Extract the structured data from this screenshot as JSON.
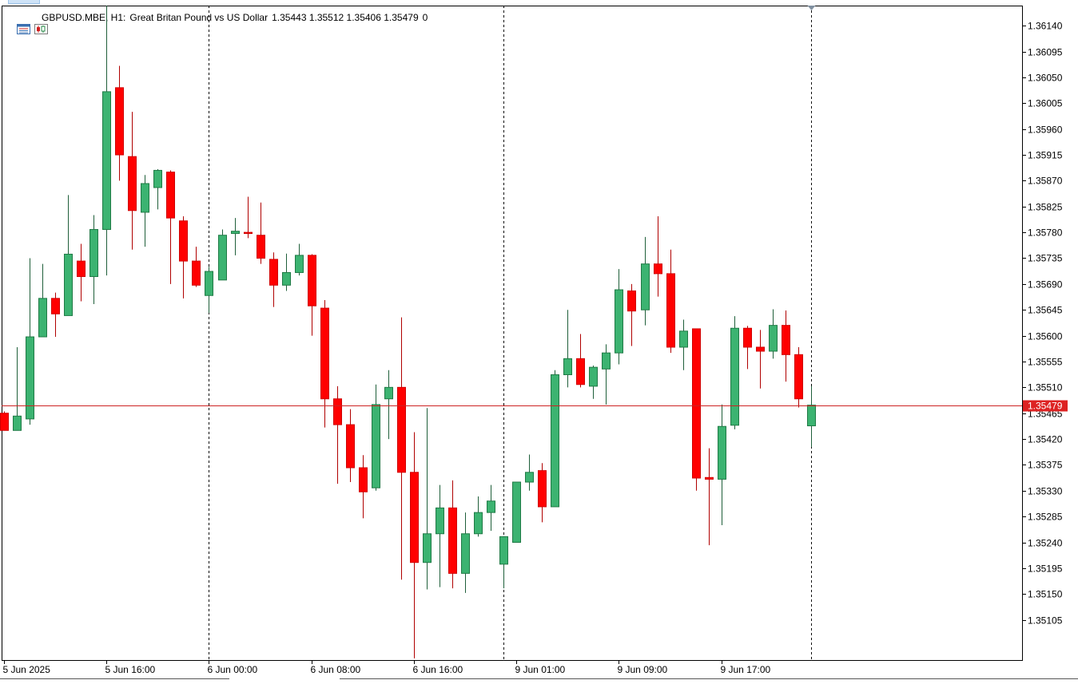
{
  "header": {
    "symbol_tf": "GBPUSD.MBE, H1:",
    "description": "Great Britan Pound vs US Dollar",
    "ohlc": "1.35443 1.35512 1.35406 1.35479",
    "volume": "0"
  },
  "colors": {
    "bull": "#3cb371",
    "bear": "#ff0000",
    "bull_border": "#1f7a45",
    "bear_border": "#d00000",
    "price_line": "#cc2222",
    "price_label_bg": "#dd2222",
    "grid": "#000000"
  },
  "icons": [
    "chart-window-icon",
    "candles-icon"
  ],
  "chart_data": {
    "type": "candlestick",
    "symbol": "GBPUSD.MBE",
    "timeframe": "H1",
    "ylim": [
      1.35035,
      1.36175
    ],
    "y_ticks": [
      "1.36140",
      "1.36095",
      "1.36050",
      "1.36005",
      "1.35960",
      "1.35915",
      "1.35870",
      "1.35825",
      "1.35780",
      "1.35735",
      "1.35690",
      "1.35645",
      "1.35600",
      "1.35555",
      "1.35510",
      "1.35465",
      "1.35420",
      "1.35375",
      "1.35330",
      "1.35285",
      "1.35240",
      "1.35195",
      "1.35150",
      "1.35105"
    ],
    "x_labels": [
      {
        "index": 0,
        "label": "5 Jun 2025"
      },
      {
        "index": 8,
        "label": "5 Jun 16:00"
      },
      {
        "index": 16,
        "label": "6 Jun 00:00"
      },
      {
        "index": 24,
        "label": "6 Jun 08:00"
      },
      {
        "index": 32,
        "label": "6 Jun 16:00"
      },
      {
        "index": 40,
        "label": "9 Jun 01:00"
      },
      {
        "index": 48,
        "label": "9 Jun 09:00"
      },
      {
        "index": 56,
        "label": "9 Jun 17:00"
      }
    ],
    "period_separators": [
      16,
      39,
      63
    ],
    "current_price": "1.35479",
    "candles": [
      {
        "o": 1.35465,
        "h": 1.35468,
        "l": 1.35435,
        "c": 1.35435
      },
      {
        "o": 1.35435,
        "h": 1.3558,
        "l": 1.35435,
        "c": 1.3546
      },
      {
        "o": 1.35455,
        "h": 1.35735,
        "l": 1.35445,
        "c": 1.35598
      },
      {
        "o": 1.35598,
        "h": 1.35725,
        "l": 1.35598,
        "c": 1.35665
      },
      {
        "o": 1.35665,
        "h": 1.35675,
        "l": 1.35598,
        "c": 1.35638
      },
      {
        "o": 1.35635,
        "h": 1.35845,
        "l": 1.35635,
        "c": 1.35742
      },
      {
        "o": 1.3573,
        "h": 1.3576,
        "l": 1.3566,
        "c": 1.35703
      },
      {
        "o": 1.35703,
        "h": 1.3581,
        "l": 1.35655,
        "c": 1.35785
      },
      {
        "o": 1.35785,
        "h": 1.36175,
        "l": 1.35705,
        "c": 1.36025
      },
      {
        "o": 1.36032,
        "h": 1.3607,
        "l": 1.3587,
        "c": 1.35915
      },
      {
        "o": 1.35912,
        "h": 1.3599,
        "l": 1.3575,
        "c": 1.35818
      },
      {
        "o": 1.35815,
        "h": 1.3588,
        "l": 1.35755,
        "c": 1.35865
      },
      {
        "o": 1.35858,
        "h": 1.3589,
        "l": 1.3582,
        "c": 1.35888
      },
      {
        "o": 1.35885,
        "h": 1.35888,
        "l": 1.3569,
        "c": 1.35805
      },
      {
        "o": 1.358,
        "h": 1.35808,
        "l": 1.35665,
        "c": 1.3573
      },
      {
        "o": 1.3573,
        "h": 1.35755,
        "l": 1.35685,
        "c": 1.35688
      },
      {
        "o": 1.3567,
        "h": 1.3572,
        "l": 1.3564,
        "c": 1.35712
      },
      {
        "o": 1.35697,
        "h": 1.35785,
        "l": 1.35697,
        "c": 1.35775
      },
      {
        "o": 1.35778,
        "h": 1.35805,
        "l": 1.3574,
        "c": 1.35782
      },
      {
        "o": 1.3578,
        "h": 1.35842,
        "l": 1.3577,
        "c": 1.35778
      },
      {
        "o": 1.35775,
        "h": 1.35832,
        "l": 1.35725,
        "c": 1.35735
      },
      {
        "o": 1.35733,
        "h": 1.35745,
        "l": 1.3565,
        "c": 1.35688
      },
      {
        "o": 1.35688,
        "h": 1.35743,
        "l": 1.35678,
        "c": 1.3571
      },
      {
        "o": 1.3571,
        "h": 1.3576,
        "l": 1.35705,
        "c": 1.3574
      },
      {
        "o": 1.3574,
        "h": 1.35742,
        "l": 1.356,
        "c": 1.35652
      },
      {
        "o": 1.35648,
        "h": 1.35662,
        "l": 1.3544,
        "c": 1.3549
      },
      {
        "o": 1.3549,
        "h": 1.35512,
        "l": 1.35342,
        "c": 1.35445
      },
      {
        "o": 1.35445,
        "h": 1.35472,
        "l": 1.35345,
        "c": 1.3537
      },
      {
        "o": 1.3537,
        "h": 1.35392,
        "l": 1.35282,
        "c": 1.35328
      },
      {
        "o": 1.35335,
        "h": 1.35515,
        "l": 1.3533,
        "c": 1.3548
      },
      {
        "o": 1.3549,
        "h": 1.3554,
        "l": 1.3542,
        "c": 1.3551
      },
      {
        "o": 1.3551,
        "h": 1.35632,
        "l": 1.35175,
        "c": 1.35362
      },
      {
        "o": 1.35362,
        "h": 1.35432,
        "l": 1.35038,
        "c": 1.35205
      },
      {
        "o": 1.35205,
        "h": 1.35474,
        "l": 1.35158,
        "c": 1.35255
      },
      {
        "o": 1.35255,
        "h": 1.3534,
        "l": 1.35162,
        "c": 1.353
      },
      {
        "o": 1.353,
        "h": 1.35348,
        "l": 1.3516,
        "c": 1.35186
      },
      {
        "o": 1.35186,
        "h": 1.35292,
        "l": 1.35152,
        "c": 1.35255
      },
      {
        "o": 1.35255,
        "h": 1.3532,
        "l": 1.3525,
        "c": 1.35292
      },
      {
        "o": 1.35292,
        "h": 1.3534,
        "l": 1.3526,
        "c": 1.35312
      },
      {
        "o": 1.35202,
        "h": 1.35245,
        "l": 1.3516,
        "c": 1.3525
      },
      {
        "o": 1.3524,
        "h": 1.35345,
        "l": 1.3524,
        "c": 1.35345
      },
      {
        "o": 1.35345,
        "h": 1.35393,
        "l": 1.3533,
        "c": 1.35362
      },
      {
        "o": 1.35365,
        "h": 1.35378,
        "l": 1.35275,
        "c": 1.35302
      },
      {
        "o": 1.35302,
        "h": 1.3554,
        "l": 1.35302,
        "c": 1.35532
      },
      {
        "o": 1.35532,
        "h": 1.35645,
        "l": 1.3551,
        "c": 1.3556
      },
      {
        "o": 1.3556,
        "h": 1.35603,
        "l": 1.3551,
        "c": 1.35515
      },
      {
        "o": 1.35512,
        "h": 1.35548,
        "l": 1.3549,
        "c": 1.35545
      },
      {
        "o": 1.35542,
        "h": 1.35585,
        "l": 1.3548,
        "c": 1.3557
      },
      {
        "o": 1.3557,
        "h": 1.35716,
        "l": 1.3555,
        "c": 1.3568
      },
      {
        "o": 1.35678,
        "h": 1.3569,
        "l": 1.35582,
        "c": 1.35643
      },
      {
        "o": 1.35645,
        "h": 1.35772,
        "l": 1.35618,
        "c": 1.35725
      },
      {
        "o": 1.35725,
        "h": 1.35808,
        "l": 1.35668,
        "c": 1.35708
      },
      {
        "o": 1.35708,
        "h": 1.3575,
        "l": 1.3557,
        "c": 1.3558
      },
      {
        "o": 1.3558,
        "h": 1.35628,
        "l": 1.3554,
        "c": 1.35608
      },
      {
        "o": 1.35612,
        "h": 1.35612,
        "l": 1.3533,
        "c": 1.35352
      },
      {
        "o": 1.35353,
        "h": 1.35404,
        "l": 1.35235,
        "c": 1.3535
      },
      {
        "o": 1.3535,
        "h": 1.3548,
        "l": 1.3527,
        "c": 1.35442
      },
      {
        "o": 1.35444,
        "h": 1.35634,
        "l": 1.35437,
        "c": 1.35613
      },
      {
        "o": 1.35613,
        "h": 1.35617,
        "l": 1.35542,
        "c": 1.3558
      },
      {
        "o": 1.3558,
        "h": 1.3561,
        "l": 1.35508,
        "c": 1.35573
      },
      {
        "o": 1.35573,
        "h": 1.35646,
        "l": 1.3556,
        "c": 1.35618
      },
      {
        "o": 1.35618,
        "h": 1.35644,
        "l": 1.3552,
        "c": 1.35567
      },
      {
        "o": 1.35567,
        "h": 1.3558,
        "l": 1.35475,
        "c": 1.3549
      },
      {
        "o": 1.35443,
        "h": 1.35512,
        "l": 1.35406,
        "c": 1.35479
      }
    ]
  }
}
